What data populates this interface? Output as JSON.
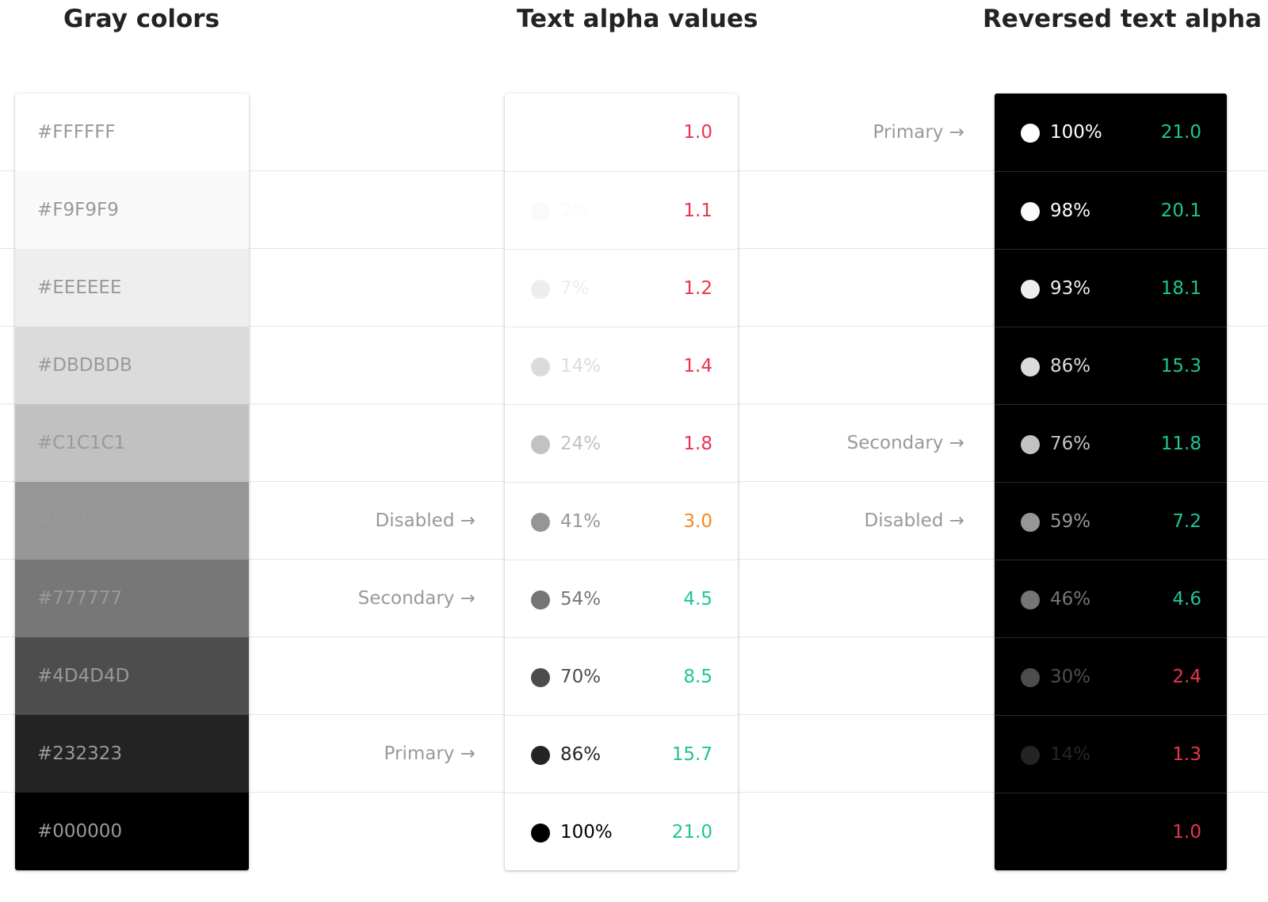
{
  "headings": {
    "gray": "Gray colors",
    "text_alpha": "Text alpha values",
    "reversed": "Reversed text alpha"
  },
  "gray_colors": [
    {
      "label": "#FFFFFF",
      "color": "#FFFFFF"
    },
    {
      "label": "#F9F9F9",
      "color": "#F9F9F9"
    },
    {
      "label": "#EEEEEE",
      "color": "#EEEEEE"
    },
    {
      "label": "#DBDBDB",
      "color": "#DBDBDB"
    },
    {
      "label": "#C1C1C1",
      "color": "#C1C1C1"
    },
    {
      "label": "#969696",
      "color": "#969696"
    },
    {
      "label": "#777777",
      "color": "#777777"
    },
    {
      "label": "#4D4D4D",
      "color": "#4D4D4D"
    },
    {
      "label": "#232323",
      "color": "#232323"
    },
    {
      "label": "#000000",
      "color": "#000000"
    }
  ],
  "text_alpha": [
    {
      "percent": "",
      "alpha": 0.0,
      "ratio": "1.0",
      "ratio_color": "#E8344E"
    },
    {
      "percent": "2%",
      "alpha": 0.02,
      "ratio": "1.1",
      "ratio_color": "#E8344E"
    },
    {
      "percent": "7%",
      "alpha": 0.07,
      "ratio": "1.2",
      "ratio_color": "#E8344E"
    },
    {
      "percent": "14%",
      "alpha": 0.14,
      "ratio": "1.4",
      "ratio_color": "#E8344E"
    },
    {
      "percent": "24%",
      "alpha": 0.24,
      "ratio": "1.8",
      "ratio_color": "#E8344E"
    },
    {
      "percent": "41%",
      "alpha": 0.41,
      "ratio": "3.0",
      "ratio_color": "#F5891F"
    },
    {
      "percent": "54%",
      "alpha": 0.54,
      "ratio": "4.5",
      "ratio_color": "#1DC598"
    },
    {
      "percent": "70%",
      "alpha": 0.7,
      "ratio": "8.5",
      "ratio_color": "#1DC598"
    },
    {
      "percent": "86%",
      "alpha": 0.86,
      "ratio": "15.7",
      "ratio_color": "#1DC598"
    },
    {
      "percent": "100%",
      "alpha": 1.0,
      "ratio": "21.0",
      "ratio_color": "#1DC598"
    }
  ],
  "reversed_alpha": [
    {
      "percent": "100%",
      "alpha": 1.0,
      "ratio": "21.0",
      "ratio_color": "#1DC598"
    },
    {
      "percent": "98%",
      "alpha": 0.98,
      "ratio": "20.1",
      "ratio_color": "#1DC598"
    },
    {
      "percent": "93%",
      "alpha": 0.93,
      "ratio": "18.1",
      "ratio_color": "#1DC598"
    },
    {
      "percent": "86%",
      "alpha": 0.86,
      "ratio": "15.3",
      "ratio_color": "#1DC598"
    },
    {
      "percent": "76%",
      "alpha": 0.76,
      "ratio": "11.8",
      "ratio_color": "#1DC598"
    },
    {
      "percent": "59%",
      "alpha": 0.59,
      "ratio": "7.2",
      "ratio_color": "#1DC598"
    },
    {
      "percent": "46%",
      "alpha": 0.46,
      "ratio": "4.6",
      "ratio_color": "#1DC598"
    },
    {
      "percent": "30%",
      "alpha": 0.3,
      "ratio": "2.4",
      "ratio_color": "#E8344E"
    },
    {
      "percent": "14%",
      "alpha": 0.14,
      "ratio": "1.3",
      "ratio_color": "#E8344E"
    },
    {
      "percent": "",
      "alpha": 0.0,
      "ratio": "1.0",
      "ratio_color": "#E8344E"
    }
  ],
  "markers_text_alpha": [
    {
      "row": 5,
      "label": "Disabled →"
    },
    {
      "row": 6,
      "label": "Secondary →"
    },
    {
      "row": 8,
      "label": "Primary →"
    }
  ],
  "markers_reversed": [
    {
      "row": 0,
      "label": "Primary →"
    },
    {
      "row": 4,
      "label": "Secondary →"
    },
    {
      "row": 5,
      "label": "Disabled →"
    }
  ]
}
